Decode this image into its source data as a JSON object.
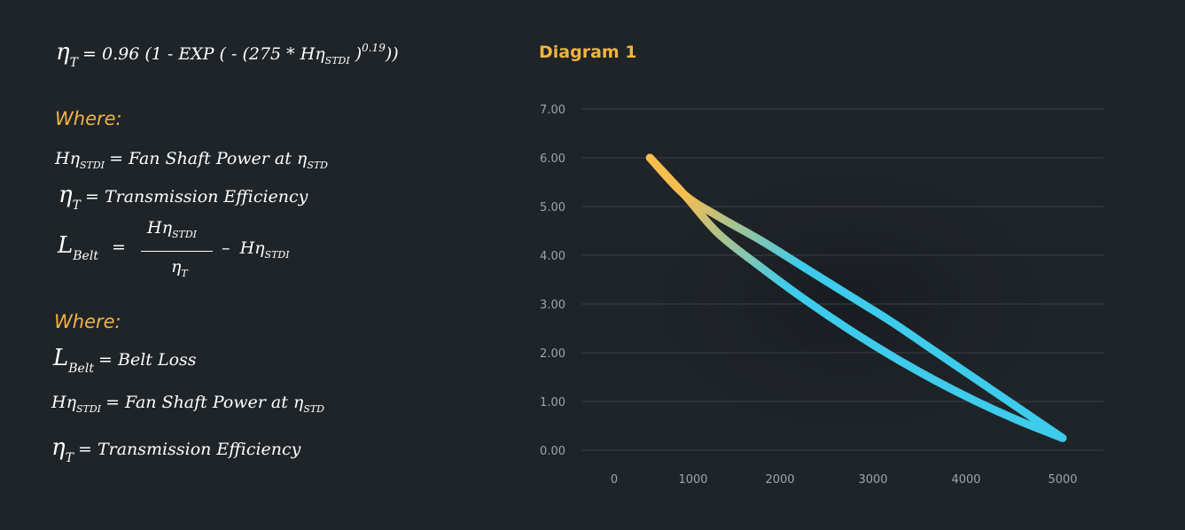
{
  "formulas": {
    "main": {
      "lhs_symbol": "η",
      "lhs_sub": "T",
      "expr_start": "= 0.96 (1 - EXP ( - (275 * Hη",
      "expr_sub": "STDI",
      "expr_close": " )",
      "expr_sup": "0.19",
      "expr_end": "))"
    },
    "where1": "Where:",
    "def1": {
      "symbol": "Hη",
      "sub": "STDI",
      "text": " = Fan Shaft Power at η",
      "text_sub": "STD"
    },
    "def2": {
      "symbol": "η",
      "sub": "T",
      "text": "= Transmission Efficiency"
    },
    "belt": {
      "lhs_symbol": "L",
      "lhs_sub": "Belt",
      "equals": "=",
      "num_symbol": "Hη",
      "num_sub": "STDI",
      "den_symbol": "η",
      "den_sub": "T",
      "minus": "–",
      "rhs_symbol": "Hη",
      "rhs_sub": "STDI"
    },
    "where2": "Where:",
    "def3": {
      "symbol": "L",
      "sub": "Belt",
      "text": " = Belt Loss"
    },
    "def4": {
      "symbol": "Hη",
      "sub": "STDI",
      "text": " = Fan Shaft Power at η",
      "text_sub": "STD"
    },
    "def5": {
      "symbol": "η",
      "sub": "T",
      "text": "= Transmission Efficiency"
    }
  },
  "chart_data": {
    "type": "line",
    "title": "Diagram 1",
    "xlabel": "",
    "ylabel": "",
    "x_ticks": [
      "0",
      "1000",
      "2000",
      "3000",
      "4000",
      "5000"
    ],
    "y_ticks": [
      "0.00",
      "1.00",
      "2.00",
      "3.00",
      "4.00",
      "5.00",
      "6.00",
      "7.00"
    ],
    "xlim": [
      0,
      5000
    ],
    "ylim": [
      0,
      7
    ],
    "grid": "horizontal",
    "colors": {
      "start": "#f6bd4f",
      "end": "#3ecbec",
      "grid": "#3a4046",
      "tick": "#9ea4aa"
    },
    "series": [
      {
        "x": [
          200,
          600,
          1000,
          1500,
          2000,
          2500,
          3000,
          3500,
          4000,
          4500,
          5000
        ],
        "y": [
          6.0,
          5.25,
          4.8,
          4.3,
          3.75,
          3.2,
          2.65,
          2.05,
          1.45,
          0.85,
          0.25
        ]
      },
      {
        "x": [
          200,
          600,
          1000,
          1500,
          2000,
          2500,
          3000,
          3500,
          4000,
          4500,
          5000
        ],
        "y": [
          6.0,
          5.25,
          4.45,
          3.75,
          3.1,
          2.5,
          1.95,
          1.45,
          1.0,
          0.6,
          0.25
        ]
      }
    ]
  }
}
